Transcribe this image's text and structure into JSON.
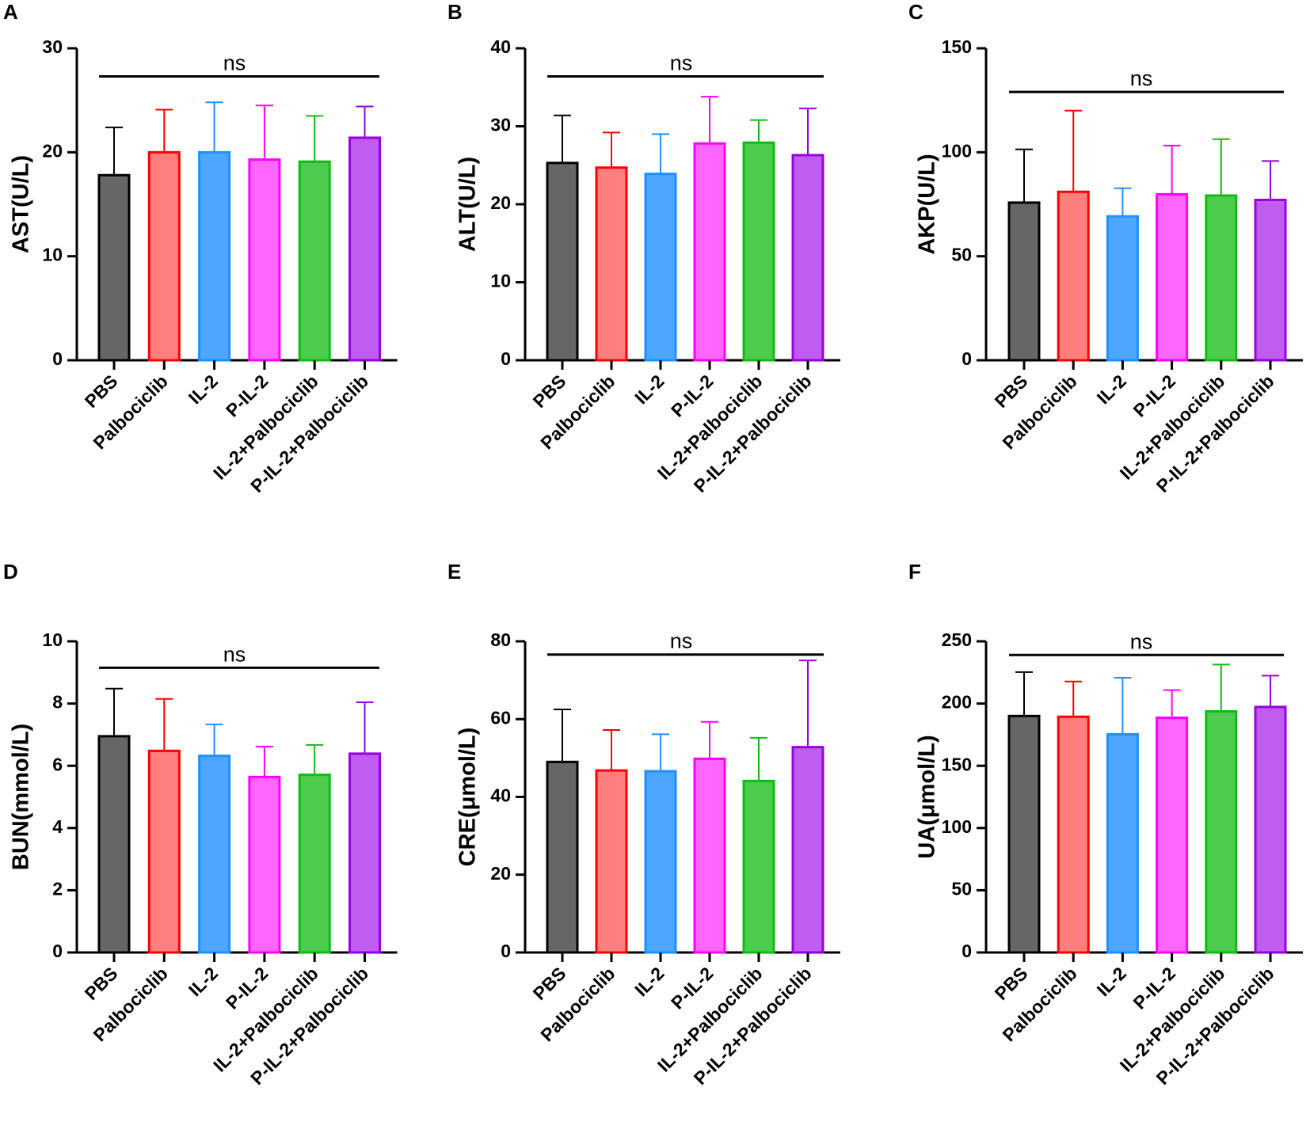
{
  "categories": [
    "PBS",
    "Palbociclib",
    "IL-2",
    "P-IL-2",
    "IL-2+Palbociclib",
    "P-IL-2+Palbociclib"
  ],
  "series_colors": {
    "fill": [
      "#666666",
      "#ff7f7f",
      "#4da6ff",
      "#ff66ff",
      "#4ccc4c",
      "#c05cf0"
    ],
    "stroke": [
      "#000000",
      "#ff0000",
      "#1e90ff",
      "#ff00ff",
      "#11bb11",
      "#9900dd"
    ]
  },
  "chart_data": [
    {
      "type": "bar",
      "panel": "A",
      "title": "",
      "xlabel": "",
      "ylabel": "AST(U/L)",
      "ylim": [
        0,
        30
      ],
      "yticks": [
        0,
        10,
        20,
        30
      ],
      "values": [
        17.8,
        20.0,
        20.0,
        19.3,
        19.1,
        21.4
      ],
      "errors": [
        4.6,
        4.1,
        4.8,
        5.2,
        4.4,
        3.0
      ],
      "annotation": "ns",
      "annotation_y": 27.3
    },
    {
      "type": "bar",
      "panel": "B",
      "title": "",
      "xlabel": "",
      "ylabel": "ALT(U/L)",
      "ylim": [
        0,
        40
      ],
      "yticks": [
        0,
        10,
        20,
        30,
        40
      ],
      "values": [
        25.3,
        24.7,
        23.9,
        27.8,
        27.9,
        26.3
      ],
      "errors": [
        6.1,
        4.5,
        5.1,
        6.0,
        2.9,
        6.0
      ],
      "annotation": "ns",
      "annotation_y": 36.4
    },
    {
      "type": "bar",
      "panel": "C",
      "title": "",
      "xlabel": "",
      "ylabel": "AKP(U/L)",
      "ylim": [
        0,
        150
      ],
      "yticks": [
        0,
        50,
        100,
        150
      ],
      "values": [
        75.8,
        81.0,
        69.2,
        79.8,
        79.2,
        77.1
      ],
      "errors": [
        25.6,
        39.0,
        13.5,
        23.4,
        27.1,
        18.7
      ],
      "annotation": "ns",
      "annotation_y": 129
    },
    {
      "type": "bar",
      "panel": "D",
      "title": "",
      "xlabel": "",
      "ylabel": "BUN(mmol/L)",
      "ylim": [
        0,
        10
      ],
      "yticks": [
        0,
        2,
        4,
        6,
        8,
        10
      ],
      "values": [
        6.95,
        6.48,
        6.32,
        5.64,
        5.71,
        6.39
      ],
      "errors": [
        1.53,
        1.67,
        1.01,
        0.98,
        0.96,
        1.65
      ],
      "annotation": "ns",
      "annotation_y": 9.15
    },
    {
      "type": "bar",
      "panel": "E",
      "title": "",
      "xlabel": "",
      "ylabel": "CRE(μmol/L)",
      "ylim": [
        0,
        80
      ],
      "yticks": [
        0,
        20,
        40,
        60,
        80
      ],
      "values": [
        49.0,
        46.8,
        46.6,
        49.8,
        44.1,
        52.8
      ],
      "errors": [
        13.5,
        10.4,
        9.5,
        9.5,
        11.1,
        22.3
      ],
      "annotation": "ns",
      "annotation_y": 76.6
    },
    {
      "type": "bar",
      "panel": "F",
      "title": "",
      "xlabel": "",
      "ylabel": "UA(μmol/L)",
      "ylim": [
        0,
        250
      ],
      "yticks": [
        0,
        50,
        100,
        150,
        200,
        250
      ],
      "values": [
        190.0,
        189.4,
        175.3,
        188.6,
        193.7,
        197.3
      ],
      "errors": [
        35.3,
        28.3,
        45.4,
        22.2,
        37.6,
        25.1
      ],
      "annotation": "ns",
      "annotation_y": 239
    }
  ]
}
